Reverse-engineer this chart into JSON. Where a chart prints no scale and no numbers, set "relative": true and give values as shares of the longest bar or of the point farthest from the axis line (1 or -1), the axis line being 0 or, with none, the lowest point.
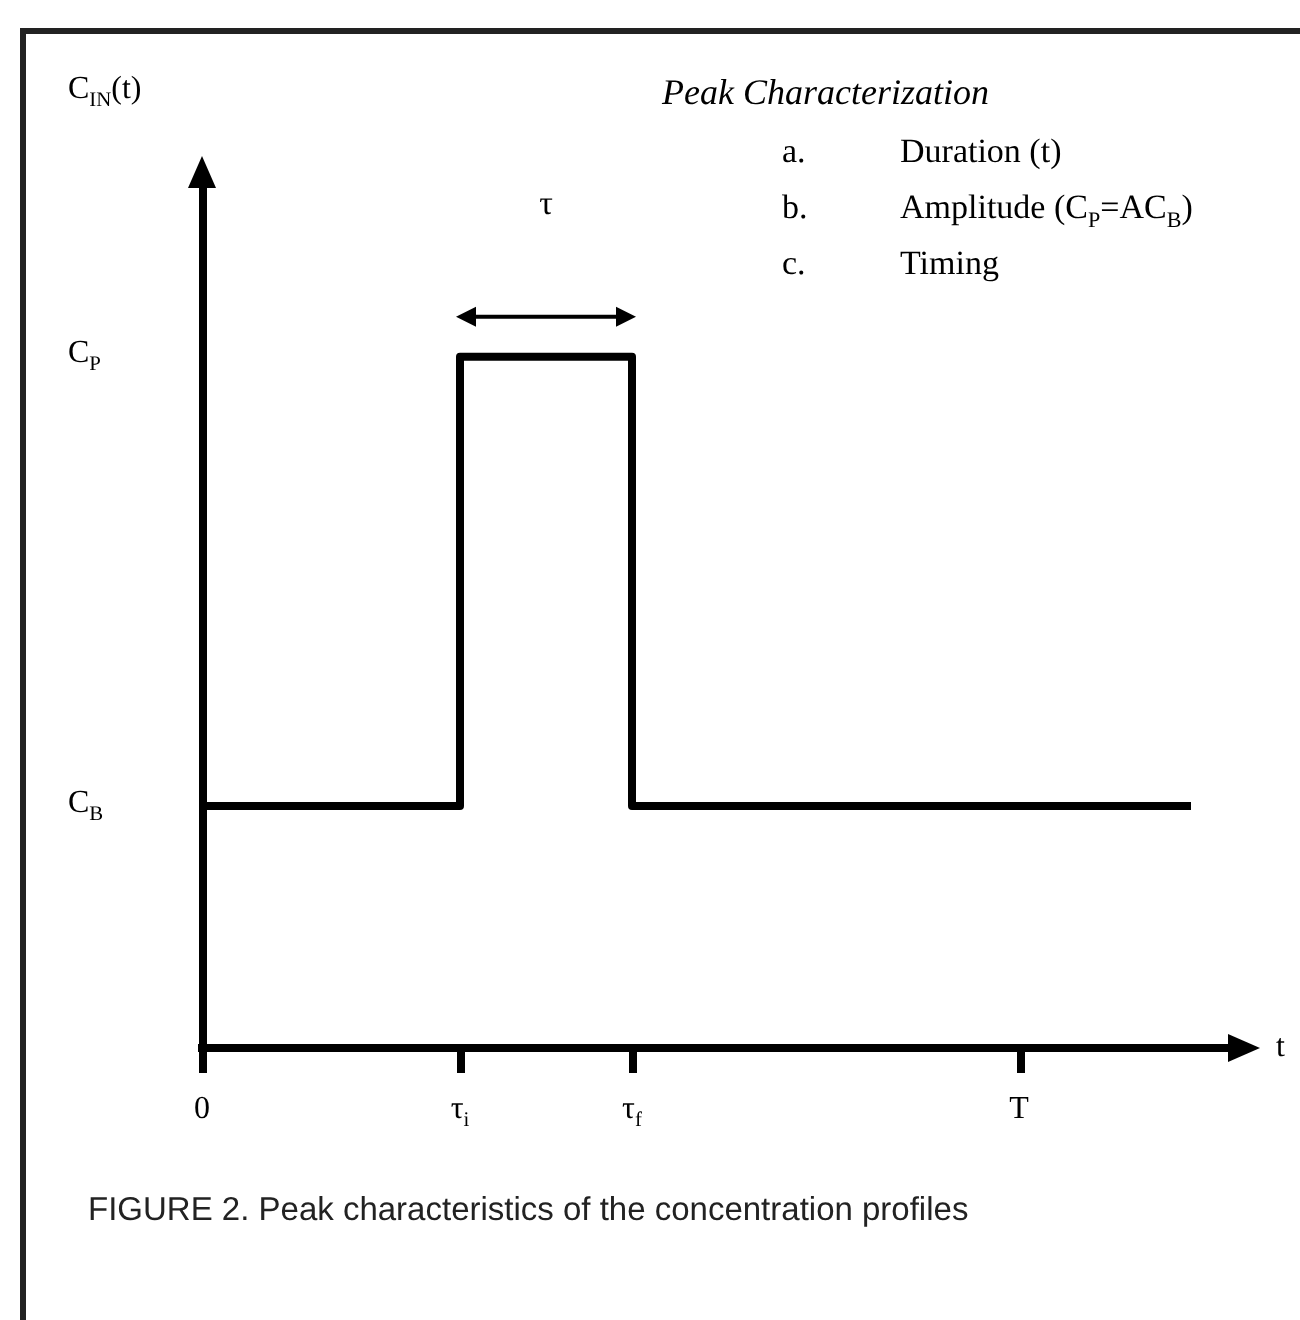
{
  "chart_data": {
    "type": "step",
    "relative": true,
    "title": "Peak Characterization",
    "subtitle": "a.\tDuration (t)\nb.\tAmplitude (C$_{P}$=AC$_{B}$)\nc.\tTiming",
    "xlabel": "t",
    "categories": [
      "0",
      null,
      null,
      null,
      null,
      null,
      "τ$_{i}$",
      null,
      null,
      null,
      "τ$_{f}$",
      null,
      null,
      null,
      null,
      null,
      null,
      null,
      null,
      "T",
      null,
      null,
      null,
      null
    ],
    "series": [
      {
        "color": "#000000",
        "values": [
          0.35,
          0.35,
          0.35,
          0.35,
          0.35,
          0.35,
          1,
          1,
          1,
          1,
          0.35,
          0.35,
          0.35,
          0.35,
          0.35,
          0.35,
          0.35,
          0.35,
          0.35,
          0.35,
          0.35,
          0.35,
          0.35,
          0.35
        ]
      }
    ],
    "annotations": [
      "τ",
      "C$_{P}$",
      "C$_{B}$",
      "FIGURE 2.   Peak characteristics of the concentration profiles",
      "C$_{IN}$(t)"
    ]
  }
}
